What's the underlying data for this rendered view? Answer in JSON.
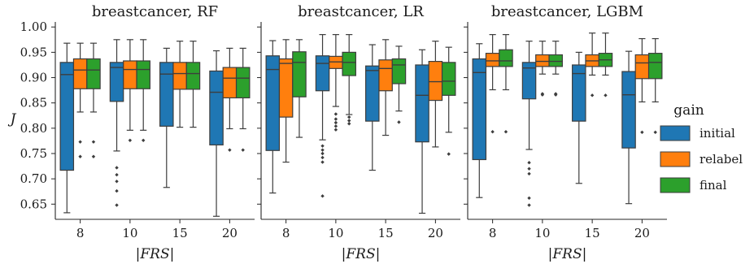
{
  "chart_data": {
    "type": "box",
    "legend": {
      "title": "gain",
      "placement": "right",
      "entries": [
        {
          "name": "initial",
          "color": "#1f77b4"
        },
        {
          "name": "relabel",
          "color": "#ff7f0e"
        },
        {
          "name": "final",
          "color": "#2ca02c"
        }
      ]
    },
    "ylabel": "J",
    "ylim": [
      0.62,
      1.01
    ],
    "yticks": [
      "0.65",
      "0.70",
      "0.75",
      "0.80",
      "0.85",
      "0.90",
      "0.95",
      "1.00"
    ],
    "xlabel": "|FRS|",
    "categories": [
      "8",
      "10",
      "15",
      "20"
    ],
    "panels": [
      {
        "title": "breastcancer, RF",
        "groups": [
          {
            "category": "8",
            "boxes": [
              {
                "series": "initial",
                "min": 0.633,
                "q1": 0.717,
                "median": 0.906,
                "q3": 0.93,
                "max": 0.968,
                "outliers": []
              },
              {
                "series": "relabel",
                "min": 0.832,
                "q1": 0.878,
                "median": 0.915,
                "q3": 0.937,
                "max": 0.968,
                "outliers": [
                  0.773,
                  0.744
                ]
              },
              {
                "series": "final",
                "min": 0.832,
                "q1": 0.878,
                "median": 0.915,
                "q3": 0.937,
                "max": 0.968,
                "outliers": [
                  0.773,
                  0.744
                ]
              }
            ]
          },
          {
            "category": "10",
            "boxes": [
              {
                "series": "initial",
                "min": 0.755,
                "q1": 0.853,
                "median": 0.92,
                "q3": 0.93,
                "max": 0.975,
                "outliers": [
                  0.722,
                  0.708,
                  0.695,
                  0.676,
                  0.648
                ]
              },
              {
                "series": "relabel",
                "min": 0.796,
                "q1": 0.878,
                "median": 0.916,
                "q3": 0.933,
                "max": 0.975,
                "outliers": [
                  0.776
                ]
              },
              {
                "series": "final",
                "min": 0.796,
                "q1": 0.878,
                "median": 0.916,
                "q3": 0.933,
                "max": 0.975,
                "outliers": [
                  0.776
                ]
              }
            ]
          },
          {
            "category": "15",
            "boxes": [
              {
                "series": "initial",
                "min": 0.683,
                "q1": 0.804,
                "median": 0.907,
                "q3": 0.93,
                "max": 0.958,
                "outliers": []
              },
              {
                "series": "relabel",
                "min": 0.802,
                "q1": 0.877,
                "median": 0.908,
                "q3": 0.93,
                "max": 0.972,
                "outliers": []
              },
              {
                "series": "final",
                "min": 0.802,
                "q1": 0.877,
                "median": 0.908,
                "q3": 0.93,
                "max": 0.972,
                "outliers": []
              }
            ]
          },
          {
            "category": "20",
            "boxes": [
              {
                "series": "initial",
                "min": 0.626,
                "q1": 0.767,
                "median": 0.871,
                "q3": 0.913,
                "max": 0.953,
                "outliers": []
              },
              {
                "series": "relabel",
                "min": 0.799,
                "q1": 0.86,
                "median": 0.899,
                "q3": 0.92,
                "max": 0.958,
                "outliers": [
                  0.757
                ]
              },
              {
                "series": "final",
                "min": 0.799,
                "q1": 0.86,
                "median": 0.899,
                "q3": 0.92,
                "max": 0.958,
                "outliers": [
                  0.757
                ]
              }
            ]
          }
        ]
      },
      {
        "title": "breastcancer, LR",
        "groups": [
          {
            "category": "8",
            "boxes": [
              {
                "series": "initial",
                "min": 0.672,
                "q1": 0.756,
                "median": 0.916,
                "q3": 0.943,
                "max": 0.973,
                "outliers": []
              },
              {
                "series": "relabel",
                "min": 0.733,
                "q1": 0.822,
                "median": 0.928,
                "q3": 0.937,
                "max": 0.975,
                "outliers": []
              },
              {
                "series": "final",
                "min": 0.782,
                "q1": 0.862,
                "median": 0.93,
                "q3": 0.951,
                "max": 0.975,
                "outliers": []
              }
            ]
          },
          {
            "category": "10",
            "boxes": [
              {
                "series": "initial",
                "min": 0.777,
                "q1": 0.874,
                "median": 0.928,
                "q3": 0.943,
                "max": 0.985,
                "outliers": [
                  0.765,
                  0.757,
                  0.75,
                  0.742,
                  0.733,
                  0.666
                ]
              },
              {
                "series": "relabel",
                "min": 0.843,
                "q1": 0.918,
                "median": 0.931,
                "q3": 0.942,
                "max": 0.985,
                "outliers": [
                  0.828,
                  0.818,
                  0.811,
                  0.804,
                  0.797
                ]
              },
              {
                "series": "final",
                "min": 0.827,
                "q1": 0.904,
                "median": 0.93,
                "q3": 0.95,
                "max": 0.985,
                "outliers": [
                  0.822,
                  0.815,
                  0.809
                ]
              }
            ]
          },
          {
            "category": "15",
            "boxes": [
              {
                "series": "initial",
                "min": 0.717,
                "q1": 0.814,
                "median": 0.914,
                "q3": 0.923,
                "max": 0.965,
                "outliers": []
              },
              {
                "series": "relabel",
                "min": 0.786,
                "q1": 0.874,
                "median": 0.918,
                "q3": 0.935,
                "max": 0.975,
                "outliers": []
              },
              {
                "series": "final",
                "min": 0.834,
                "q1": 0.888,
                "median": 0.925,
                "q3": 0.937,
                "max": 0.962,
                "outliers": [
                  0.812
                ]
              }
            ]
          },
          {
            "category": "20",
            "boxes": [
              {
                "series": "initial",
                "min": 0.632,
                "q1": 0.773,
                "median": 0.865,
                "q3": 0.925,
                "max": 0.955,
                "outliers": []
              },
              {
                "series": "relabel",
                "min": 0.763,
                "q1": 0.855,
                "median": 0.892,
                "q3": 0.932,
                "max": 0.972,
                "outliers": []
              },
              {
                "series": "final",
                "min": 0.792,
                "q1": 0.865,
                "median": 0.893,
                "q3": 0.93,
                "max": 0.96,
                "outliers": [
                  0.749
                ]
              }
            ]
          }
        ]
      },
      {
        "title": "breastcancer, LGBM",
        "groups": [
          {
            "category": "8",
            "boxes": [
              {
                "series": "initial",
                "min": 0.663,
                "q1": 0.738,
                "median": 0.91,
                "q3": 0.937,
                "max": 0.967,
                "outliers": []
              },
              {
                "series": "relabel",
                "min": 0.876,
                "q1": 0.922,
                "median": 0.933,
                "q3": 0.948,
                "max": 0.985,
                "outliers": [
                  0.793
                ]
              },
              {
                "series": "final",
                "min": 0.876,
                "q1": 0.922,
                "median": 0.933,
                "q3": 0.955,
                "max": 0.985,
                "outliers": [
                  0.793
                ]
              }
            ]
          },
          {
            "category": "10",
            "boxes": [
              {
                "series": "initial",
                "min": 0.758,
                "q1": 0.858,
                "median": 0.919,
                "q3": 0.93,
                "max": 0.972,
                "outliers": [
                  0.732,
                  0.72,
                  0.71,
                  0.662,
                  0.648
                ]
              },
              {
                "series": "relabel",
                "min": 0.907,
                "q1": 0.922,
                "median": 0.932,
                "q3": 0.945,
                "max": 0.972,
                "outliers": [
                  0.868,
                  0.866
                ]
              },
              {
                "series": "final",
                "min": 0.907,
                "q1": 0.922,
                "median": 0.932,
                "q3": 0.945,
                "max": 0.972,
                "outliers": [
                  0.868,
                  0.866
                ]
              }
            ]
          },
          {
            "category": "15",
            "boxes": [
              {
                "series": "initial",
                "min": 0.691,
                "q1": 0.814,
                "median": 0.908,
                "q3": 0.925,
                "max": 0.95,
                "outliers": []
              },
              {
                "series": "relabel",
                "min": 0.905,
                "q1": 0.922,
                "median": 0.933,
                "q3": 0.945,
                "max": 0.988,
                "outliers": [
                  0.865
                ]
              },
              {
                "series": "final",
                "min": 0.905,
                "q1": 0.922,
                "median": 0.935,
                "q3": 0.948,
                "max": 0.988,
                "outliers": [
                  0.865
                ]
              }
            ]
          },
          {
            "category": "20",
            "boxes": [
              {
                "series": "initial",
                "min": 0.651,
                "q1": 0.761,
                "median": 0.866,
                "q3": 0.912,
                "max": 0.952,
                "outliers": []
              },
              {
                "series": "relabel",
                "min": 0.852,
                "q1": 0.898,
                "median": 0.929,
                "q3": 0.945,
                "max": 0.977,
                "outliers": [
                  0.792
                ]
              },
              {
                "series": "final",
                "min": 0.852,
                "q1": 0.898,
                "median": 0.93,
                "q3": 0.948,
                "max": 0.977,
                "outliers": [
                  0.792
                ]
              }
            ]
          }
        ]
      }
    ]
  }
}
